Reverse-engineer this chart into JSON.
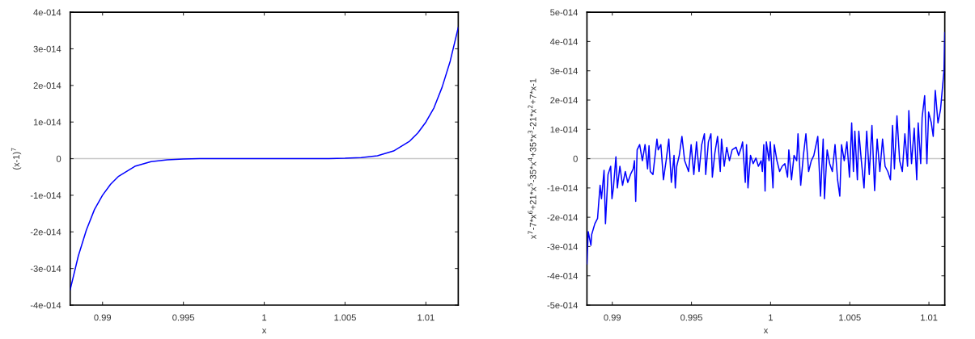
{
  "chart_data": [
    {
      "type": "line",
      "xlabel": "x",
      "ylabel": "(x-1)$^{7}$",
      "xlim": [
        0.988,
        1.012
      ],
      "xticks": [
        0.99,
        0.995,
        1,
        1.005,
        1.01
      ],
      "ylim": [
        -4e-14,
        4e-14
      ],
      "yticks": [
        {
          "value": -4e-14,
          "label": "-4e-014"
        },
        {
          "value": -3e-14,
          "label": "-3e-014"
        },
        {
          "value": -2e-14,
          "label": "-2e-014"
        },
        {
          "value": -1e-14,
          "label": "-1e-014"
        },
        0,
        {
          "value": 1e-14,
          "label": "1e-014"
        },
        {
          "value": 2e-14,
          "label": "2e-014"
        },
        {
          "value": 3e-14,
          "label": "3e-014"
        },
        {
          "value": 4e-14,
          "label": "4e-014"
        }
      ],
      "ref_lines": [
        {
          "axis": "y",
          "value": 0,
          "color": "#c8c8c8"
        }
      ],
      "grid": false,
      "series": [
        {
          "color": "#0000ff",
          "x": [
            0.988,
            0.9885,
            0.989,
            0.9895,
            0.99,
            0.9905,
            0.991,
            0.992,
            0.993,
            0.994,
            0.995,
            0.996,
            1.0,
            1.004,
            1.005,
            1.006,
            1.007,
            1.008,
            1.009,
            1.0095,
            1.01,
            1.0105,
            1.011,
            1.0115,
            1.012
          ],
          "values": [
            -3.58e-14,
            -2.66e-14,
            -1.95e-14,
            -1.39e-14,
            -1e-14,
            -7e-15,
            -4.8e-15,
            -2.1e-15,
            -8e-16,
            -3e-16,
            -1e-16,
            0,
            0,
            0,
            1e-16,
            3e-16,
            8e-16,
            2.1e-15,
            4.8e-15,
            7e-15,
            1e-14,
            1.39e-14,
            1.95e-14,
            2.66e-14,
            3.58e-14
          ]
        }
      ]
    },
    {
      "type": "line",
      "xlabel": "x",
      "ylabel": "x$^{7}$-7*x$^{6}$+21*x$^{5}$-35*x$^{4}$+35*x$^{3}$-21*x$^{2}$+7*x-1",
      "xlim": [
        0.9884,
        1.011
      ],
      "xticks": [
        0.99,
        0.995,
        1,
        1.005,
        1.01
      ],
      "ylim": [
        -5e-14,
        5e-14
      ],
      "yticks": [
        {
          "value": -5e-14,
          "label": "-5e-014"
        },
        {
          "value": -4e-14,
          "label": "-4e-014"
        },
        {
          "value": -3e-14,
          "label": "-3e-014"
        },
        {
          "value": -2e-14,
          "label": "-2e-014"
        },
        {
          "value": -1e-14,
          "label": "-1e-014"
        },
        0,
        {
          "value": 1e-14,
          "label": "1e-014"
        },
        {
          "value": 2e-14,
          "label": "2e-014"
        },
        {
          "value": 3e-14,
          "label": "3e-014"
        },
        {
          "value": 4e-14,
          "label": "4e-014"
        },
        {
          "value": 5e-14,
          "label": "5e-014"
        }
      ],
      "ref_lines": [
        {
          "axis": "y",
          "value": 0,
          "color": "#c8c8c8"
        }
      ],
      "grid": false,
      "series": [
        {
          "color": "#0000ff",
          "x": [
            0.9884,
            0.98848,
            0.98865,
            0.9887,
            0.9889,
            0.98907,
            0.98915,
            0.98923,
            0.98932,
            0.98948,
            0.98957,
            0.98973,
            0.9899,
            0.98998,
            0.99007,
            0.99023,
            0.99032,
            0.99048,
            0.99065,
            0.99082,
            0.99098,
            0.99115,
            0.99132,
            0.9914,
            0.99148,
            0.99157,
            0.99173,
            0.9919,
            0.99207,
            0.99223,
            0.99232,
            0.9924,
            0.99257,
            0.99282,
            0.9929,
            0.99307,
            0.99323,
            0.9934,
            0.99357,
            0.99373,
            0.9939,
            0.99398,
            0.99407,
            0.99423,
            0.9944,
            0.99457,
            0.99482,
            0.99498,
            0.99515,
            0.99532,
            0.99548,
            0.99565,
            0.99582,
            0.9959,
            0.99607,
            0.99623,
            0.99632,
            0.99648,
            0.99665,
            0.99682,
            0.9969,
            0.99707,
            0.99723,
            0.9974,
            0.99757,
            0.99782,
            0.99798,
            0.99815,
            0.99823,
            0.9984,
            0.99848,
            0.99857,
            0.99873,
            0.9989,
            0.99907,
            0.99923,
            0.9994,
            0.99948,
            0.99957,
            0.99965,
            0.99973,
            0.9999,
            0.99998,
            1.00015,
            1.00023,
            1.0004,
            1.00057,
            1.00073,
            1.0009,
            1.00107,
            1.00115,
            1.00132,
            1.00148,
            1.00165,
            1.00173,
            1.0019,
            1.00207,
            1.00223,
            1.0024,
            1.00257,
            1.00273,
            1.00298,
            1.00315,
            1.00332,
            1.0034,
            1.00357,
            1.00373,
            1.0039,
            1.00407,
            1.00423,
            1.00437,
            1.00448,
            1.00465,
            1.00482,
            1.00498,
            1.00512,
            1.00523,
            1.00532,
            1.00548,
            1.00557,
            1.00573,
            1.0059,
            1.00607,
            1.00623,
            1.0064,
            1.00657,
            1.00673,
            1.0069,
            1.00707,
            1.00723,
            1.0074,
            1.00757,
            1.0077,
            1.00782,
            1.00798,
            1.00815,
            1.00832,
            1.00848,
            1.00865,
            1.00873,
            1.0089,
            1.00907,
            1.00923,
            1.00932,
            1.00948,
            1.00957,
            1.00973,
            1.00987,
            1.00998,
            1.01015,
            1.01027,
            1.0104,
            1.01057,
            1.01073,
            1.01087,
            1.01095,
            1.011
          ],
          "values": [
            -3.59e-14,
            -2.49e-14,
            -2.96e-14,
            -2.59e-14,
            -2.22e-14,
            -2.04e-14,
            -1.46e-14,
            -9.1e-15,
            -1.37e-14,
            -4e-15,
            -2.22e-14,
            -5.4e-15,
            -2.6e-15,
            -1.37e-14,
            -1e-14,
            6e-16,
            -1e-14,
            -2.6e-15,
            -9.1e-15,
            -4.4e-15,
            -8.1e-15,
            -5.4e-15,
            -3.5e-15,
            -7e-16,
            -1.46e-14,
            3e-15,
            4.8e-15,
            -7e-16,
            4.8e-15,
            -3.5e-15,
            4.4e-15,
            -4.4e-15,
            -5.4e-15,
            6.7e-15,
            3e-15,
            4.8e-15,
            -7.2e-15,
            -7e-16,
            6.7e-15,
            -8.1e-15,
            1.1e-15,
            -1e-14,
            -2.6e-15,
            1.1e-15,
            7.6e-15,
            -7e-16,
            -4.4e-15,
            4.8e-15,
            -5.4e-15,
            5.7e-15,
            -4.4e-15,
            4.8e-15,
            8.5e-15,
            -5.4e-15,
            5.7e-15,
            8.5e-15,
            -6.3e-15,
            2e-15,
            7.6e-15,
            -4.4e-15,
            6.7e-15,
            -2.6e-15,
            3.9e-15,
            -7e-16,
            3e-15,
            3.9e-15,
            1.1e-15,
            3.9e-15,
            5.7e-15,
            -8.1e-15,
            4.8e-15,
            -1e-14,
            1.1e-15,
            -1.7e-15,
            2e-16,
            -2.6e-15,
            -7e-16,
            -4.4e-15,
            4.8e-15,
            -1.11e-14,
            5.7e-15,
            -7e-16,
            5.7e-15,
            -1e-14,
            4.8e-15,
            -7e-16,
            -4.4e-15,
            -2.6e-15,
            -1.7e-15,
            -6.3e-15,
            3e-15,
            -7.2e-15,
            1.1e-15,
            -7e-16,
            8.5e-15,
            -9.1e-15,
            1.1e-15,
            8.5e-15,
            -4.4e-15,
            -7e-16,
            1.1e-15,
            7.6e-15,
            -1.28e-14,
            6.7e-15,
            -1.37e-14,
            3e-15,
            -1.7e-15,
            -4.4e-15,
            4.8e-15,
            -7.2e-15,
            -1.28e-14,
            4.8e-15,
            -7e-16,
            5.7e-15,
            -6.3e-15,
            1.22e-14,
            -4.4e-15,
            9.4e-15,
            -7.2e-15,
            9.4e-15,
            -7e-16,
            -1e-14,
            9.4e-15,
            -5.4e-15,
            1.13e-14,
            -1.09e-14,
            6.7e-15,
            -4.4e-15,
            6.7e-15,
            -2.6e-15,
            -4.4e-15,
            -7.2e-15,
            1.13e-14,
            -3.5e-15,
            1.46e-14,
            -7e-16,
            -4.4e-15,
            8.5e-15,
            -2.6e-15,
            1.64e-14,
            -1.7e-15,
            1.04e-14,
            -7.2e-15,
            1.22e-14,
            -1.7e-15,
            1.41e-14,
            2.15e-14,
            -1.7e-15,
            1.59e-14,
            1.22e-14,
            7.6e-15,
            2.33e-14,
            1.22e-14,
            1.67e-14,
            2.52e-14,
            3e-14,
            4.3e-14
          ]
        }
      ]
    }
  ]
}
